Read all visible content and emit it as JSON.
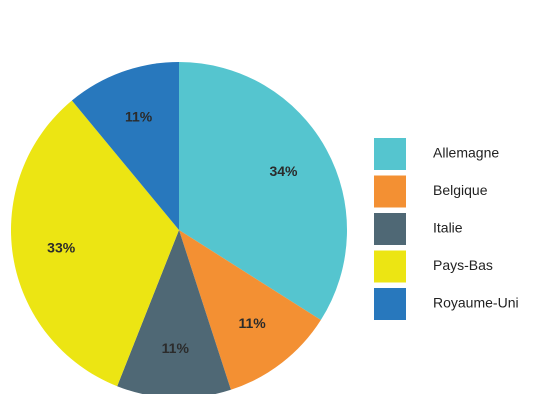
{
  "chart_data": {
    "type": "pie",
    "categories": [
      "Allemagne",
      "Belgique",
      "Italie",
      "Pays-Bas",
      "Royaume-Uni"
    ],
    "values": [
      34,
      11,
      11,
      33,
      11
    ],
    "labels": [
      "34%",
      "11%",
      "11%",
      "33%",
      "11%"
    ],
    "colors": [
      "#55c5cf",
      "#f39033",
      "#4f6875",
      "#ece513",
      "#2878bd"
    ],
    "legend_position": "right",
    "start_angle_deg": 0,
    "direction": "clockwise"
  }
}
